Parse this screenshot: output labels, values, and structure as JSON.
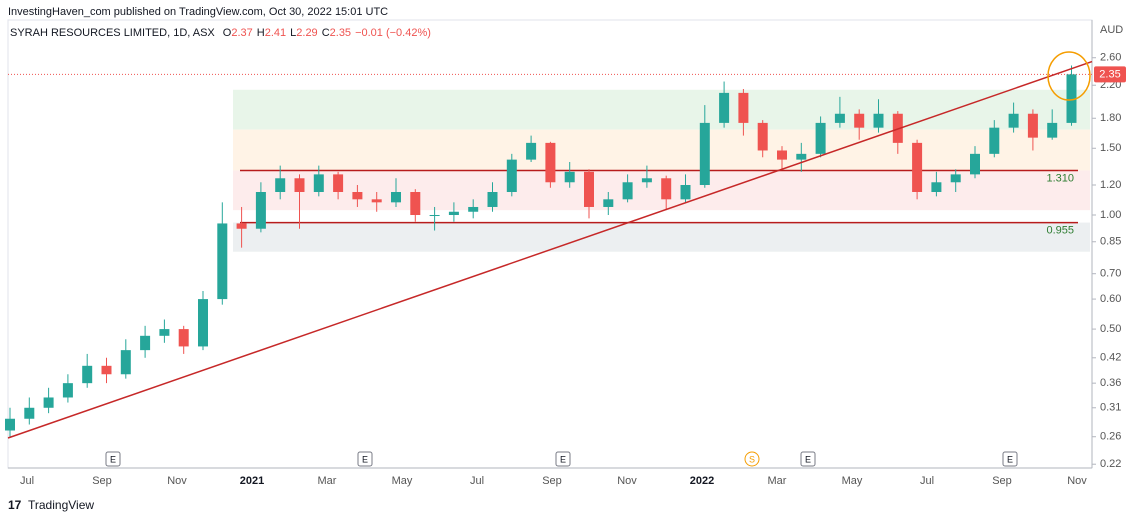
{
  "header": "InvestingHaven_com published on TradingView.com, Oct 30, 2022 15:01 UTC",
  "footer": "TradingView",
  "chart_data": {
    "type": "candlestick",
    "title": "SYRAH RESOURCES LIMITED, 1D, ASX",
    "legend": {
      "open_label": "O",
      "open": 2.37,
      "high_label": "H",
      "high": 2.41,
      "low_label": "L",
      "low": 2.29,
      "close_label": "C",
      "close": 2.35,
      "change": "−0.01 (−0.42%)"
    },
    "currency": "AUD",
    "last_price": {
      "value": 2.35,
      "label": "2.35",
      "color": "#ef5350"
    },
    "up_color": "#26a69a",
    "down_color": "#ef5350",
    "open": [
      0.27,
      0.29,
      0.31,
      0.33,
      0.36,
      0.4,
      0.38,
      0.44,
      0.48,
      0.5,
      0.45,
      0.6,
      0.95,
      0.92,
      1.15,
      1.25,
      1.15,
      1.28,
      1.15,
      1.1,
      1.08,
      1.15,
      1.0,
      1.0,
      1.02,
      1.05,
      1.15,
      1.4,
      1.55,
      1.22,
      1.3,
      1.05,
      1.1,
      1.22,
      1.25,
      1.1,
      1.2,
      1.75,
      2.1,
      1.75,
      1.48,
      1.4,
      1.45,
      1.75,
      1.85,
      1.7,
      1.85,
      1.55,
      1.15,
      1.22,
      1.28,
      1.45,
      1.7,
      1.85,
      1.6,
      1.75
    ],
    "high": [
      0.31,
      0.33,
      0.35,
      0.38,
      0.43,
      0.42,
      0.47,
      0.51,
      0.53,
      0.51,
      0.63,
      1.08,
      1.05,
      1.22,
      1.35,
      1.28,
      1.35,
      1.3,
      1.2,
      1.15,
      1.25,
      1.17,
      1.05,
      1.08,
      1.1,
      1.22,
      1.45,
      1.62,
      1.56,
      1.38,
      1.32,
      1.15,
      1.28,
      1.35,
      1.27,
      1.28,
      1.95,
      2.25,
      2.15,
      1.78,
      1.52,
      1.55,
      1.82,
      2.05,
      1.9,
      2.02,
      1.88,
      1.58,
      1.3,
      1.32,
      1.52,
      1.78,
      1.98,
      1.9,
      1.9,
      2.48
    ],
    "low": [
      0.26,
      0.28,
      0.3,
      0.32,
      0.35,
      0.36,
      0.37,
      0.42,
      0.46,
      0.43,
      0.44,
      0.58,
      0.82,
      0.9,
      1.1,
      0.92,
      1.12,
      1.1,
      1.05,
      1.02,
      1.05,
      0.96,
      0.91,
      0.96,
      0.98,
      1.02,
      1.12,
      1.38,
      1.18,
      1.18,
      0.98,
      1.0,
      1.08,
      1.18,
      1.03,
      1.08,
      1.18,
      1.7,
      1.62,
      1.42,
      1.32,
      1.3,
      1.42,
      1.7,
      1.58,
      1.65,
      1.45,
      1.1,
      1.12,
      1.15,
      1.25,
      1.42,
      1.65,
      1.48,
      1.58,
      1.72
    ],
    "close": [
      0.29,
      0.31,
      0.33,
      0.36,
      0.4,
      0.38,
      0.44,
      0.48,
      0.5,
      0.45,
      0.6,
      0.95,
      0.92,
      1.15,
      1.25,
      1.15,
      1.28,
      1.15,
      1.1,
      1.08,
      1.15,
      1.0,
      1.0,
      1.02,
      1.05,
      1.15,
      1.4,
      1.55,
      1.22,
      1.3,
      1.05,
      1.1,
      1.22,
      1.25,
      1.1,
      1.2,
      1.75,
      2.1,
      1.75,
      1.48,
      1.4,
      1.45,
      1.75,
      1.85,
      1.7,
      1.85,
      1.55,
      1.15,
      1.22,
      1.28,
      1.45,
      1.7,
      1.85,
      1.6,
      1.75,
      2.35
    ],
    "log_scale": true,
    "ylim": [
      0.215,
      3.27
    ],
    "yticks": [
      0.22,
      0.26,
      0.31,
      0.36,
      0.42,
      {
        "value": 0.5,
        "label": "0.50"
      },
      {
        "value": 0.6,
        "label": "0.60"
      },
      {
        "value": 0.7,
        "label": "0.70"
      },
      0.85,
      {
        "value": 1,
        "label": "1.00"
      },
      {
        "value": 1.2,
        "label": "1.20"
      },
      {
        "value": 1.5,
        "label": "1.50"
      },
      {
        "value": 1.8,
        "label": "1.80"
      },
      {
        "value": 2.2,
        "label": "2.20"
      },
      {
        "value": 2.6,
        "label": "2.60"
      }
    ],
    "xticks": [
      "Jul",
      "Sep",
      "Nov",
      "2021",
      "Mar",
      "May",
      "Jul",
      "Sep",
      "Nov",
      "2022",
      "Mar",
      "May",
      "Jul",
      "Sep",
      "Nov"
    ],
    "levels": [
      {
        "value": 1.31,
        "label": "1.310",
        "color": "#b71c1c"
      },
      {
        "value": 0.955,
        "label": "0.955",
        "color": "#b71c1c"
      }
    ],
    "zones": [
      {
        "from": 1.68,
        "to": 2.14,
        "color": "#e8f5e9"
      },
      {
        "from": 1.31,
        "to": 1.68,
        "color": "#fff3e6"
      },
      {
        "from": 1.03,
        "to": 1.31,
        "color": "#fdecec"
      },
      {
        "from": 0.8,
        "to": 0.955,
        "color": "#eceff1"
      }
    ],
    "trendline": {
      "start": 0.258,
      "end": 2.54,
      "color": "#c62828"
    },
    "events": [
      "E",
      "E",
      "E",
      "S",
      "E",
      "E"
    ]
  }
}
